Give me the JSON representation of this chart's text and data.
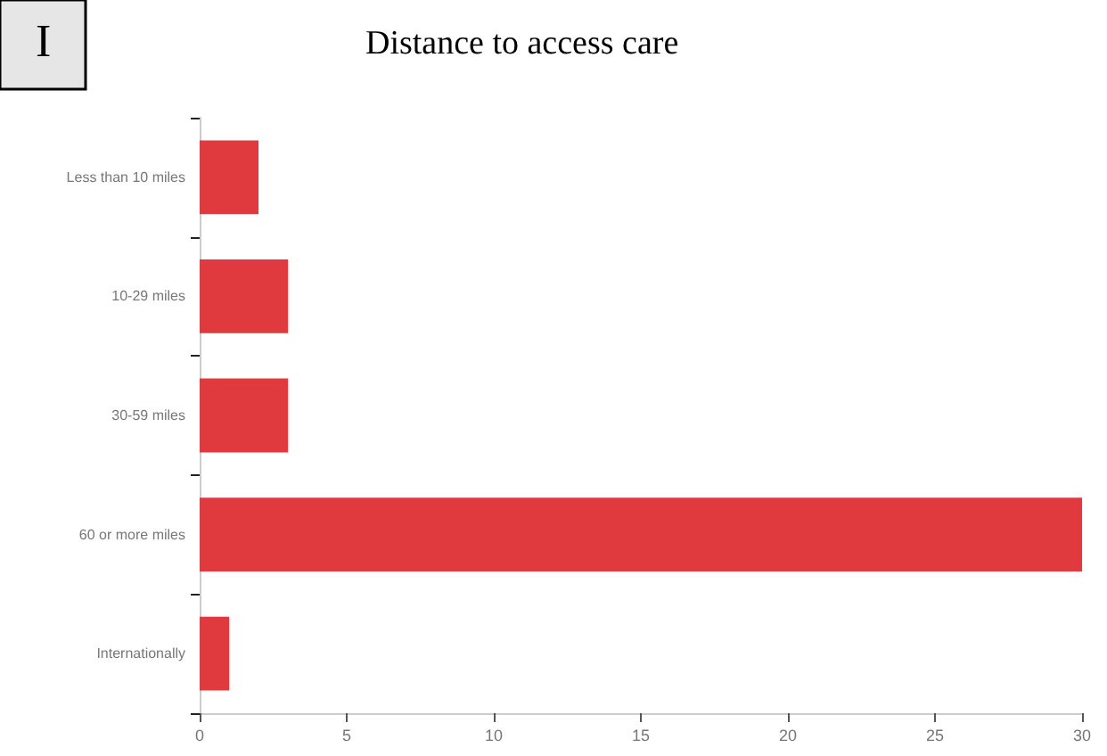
{
  "chart_data": {
    "type": "bar",
    "orientation": "horizontal",
    "title": "Distance to access care",
    "annotations": [
      "I"
    ],
    "categories": [
      "Less than 10 miles",
      "10-29 miles",
      "30-59 miles",
      "60 or more miles",
      "Internationally"
    ],
    "values": [
      2,
      3,
      3,
      30,
      1
    ],
    "color": "#e03a3e",
    "xlim": [
      0,
      30
    ],
    "xticks": [
      0,
      5,
      10,
      15,
      20,
      25,
      30
    ],
    "grid": false
  }
}
